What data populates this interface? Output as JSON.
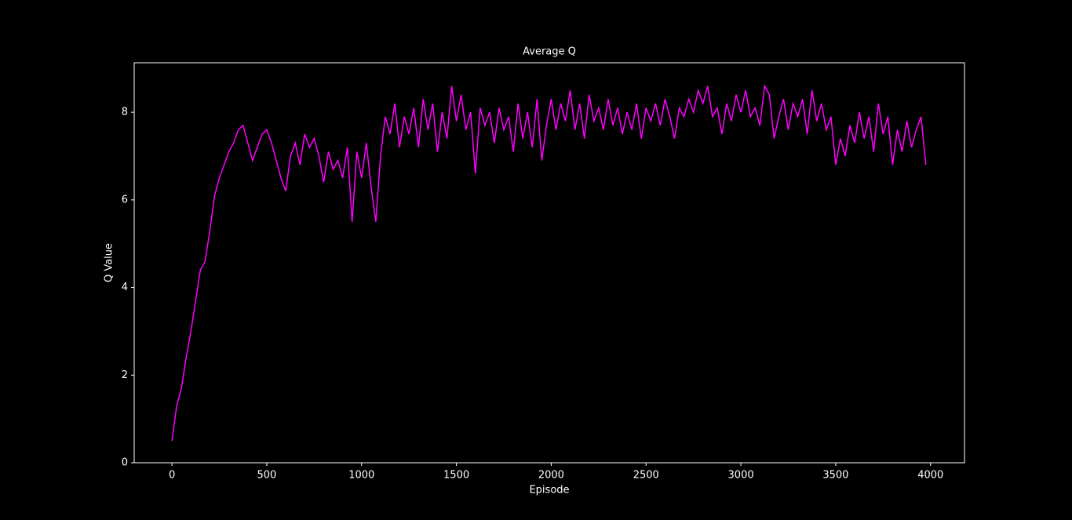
{
  "chart_data": {
    "type": "line",
    "title": "Average Q",
    "x_label": "Episode",
    "y_label": "Q Value",
    "x": [
      0,
      25,
      50,
      75,
      100,
      125,
      150,
      175,
      200,
      225,
      250,
      275,
      300,
      325,
      350,
      375,
      400,
      425,
      450,
      475,
      500,
      525,
      550,
      575,
      600,
      625,
      650,
      675,
      700,
      725,
      750,
      775,
      800,
      825,
      850,
      875,
      900,
      925,
      950,
      975,
      1000,
      1025,
      1050,
      1075,
      1100,
      1125,
      1150,
      1175,
      1200,
      1225,
      1250,
      1275,
      1300,
      1325,
      1350,
      1375,
      1400,
      1425,
      1450,
      1475,
      1500,
      1525,
      1550,
      1575,
      1600,
      1625,
      1650,
      1675,
      1700,
      1725,
      1750,
      1775,
      1800,
      1825,
      1850,
      1875,
      1900,
      1925,
      1950,
      1975,
      2000,
      2025,
      2050,
      2075,
      2100,
      2125,
      2150,
      2175,
      2200,
      2225,
      2250,
      2275,
      2300,
      2325,
      2350,
      2375,
      2400,
      2425,
      2450,
      2475,
      2500,
      2525,
      2550,
      2575,
      2600,
      2625,
      2650,
      2675,
      2700,
      2725,
      2750,
      2775,
      2800,
      2825,
      2850,
      2875,
      2900,
      2925,
      2950,
      2975,
      3000,
      3025,
      3050,
      3075,
      3100,
      3125,
      3150,
      3175,
      3200,
      3225,
      3250,
      3275,
      3300,
      3325,
      3350,
      3375,
      3400,
      3425,
      3450,
      3475,
      3500,
      3525,
      3550,
      3575,
      3600,
      3625,
      3650,
      3675,
      3700,
      3725,
      3750,
      3775,
      3800,
      3825,
      3850,
      3875,
      3900,
      3925,
      3950,
      3975
    ],
    "series": [
      {
        "name": "Average Q",
        "color": "#ff00ff",
        "values": [
          0.5,
          1.3,
          1.7,
          2.4,
          3.0,
          3.7,
          4.4,
          4.6,
          5.3,
          6.1,
          6.5,
          6.8,
          7.1,
          7.3,
          7.6,
          7.7,
          7.3,
          6.9,
          7.2,
          7.5,
          7.6,
          7.3,
          6.9,
          6.5,
          6.2,
          7.0,
          7.3,
          6.8,
          7.5,
          7.2,
          7.4,
          7.0,
          6.4,
          7.1,
          6.7,
          6.9,
          6.5,
          7.2,
          5.5,
          7.1,
          6.5,
          7.3,
          6.3,
          5.5,
          7.0,
          7.9,
          7.5,
          8.2,
          7.2,
          7.9,
          7.5,
          8.1,
          7.2,
          8.3,
          7.6,
          8.2,
          7.1,
          8.0,
          7.4,
          8.6,
          7.8,
          8.4,
          7.6,
          8.0,
          6.6,
          8.1,
          7.7,
          8.0,
          7.3,
          8.1,
          7.6,
          7.9,
          7.1,
          8.2,
          7.4,
          8.0,
          7.2,
          8.3,
          6.9,
          7.7,
          8.3,
          7.6,
          8.2,
          7.8,
          8.5,
          7.6,
          8.2,
          7.4,
          8.4,
          7.8,
          8.1,
          7.6,
          8.3,
          7.7,
          8.1,
          7.5,
          8.0,
          7.6,
          8.2,
          7.4,
          8.1,
          7.8,
          8.2,
          7.7,
          8.3,
          7.9,
          7.4,
          8.1,
          7.9,
          8.3,
          8.0,
          8.5,
          8.2,
          8.6,
          7.9,
          8.1,
          7.5,
          8.2,
          7.8,
          8.4,
          8.0,
          8.5,
          7.9,
          8.1,
          7.7,
          8.6,
          8.4,
          7.4,
          7.9,
          8.3,
          7.6,
          8.2,
          7.9,
          8.3,
          7.5,
          8.5,
          7.8,
          8.2,
          7.6,
          7.9,
          6.8,
          7.4,
          7.0,
          7.7,
          7.3,
          8.0,
          7.4,
          7.9,
          7.1,
          8.2,
          7.5,
          7.9,
          6.8,
          7.6,
          7.1,
          7.8,
          7.2,
          7.6,
          7.9,
          6.8
        ]
      }
    ],
    "xlim": [
      -199,
      4179
    ],
    "ylim": [
      0,
      9.13
    ],
    "xticks": [
      0,
      500,
      1000,
      1500,
      2000,
      2500,
      3000,
      3500,
      4000
    ],
    "yticks": [
      0,
      2,
      4,
      6,
      8
    ]
  }
}
